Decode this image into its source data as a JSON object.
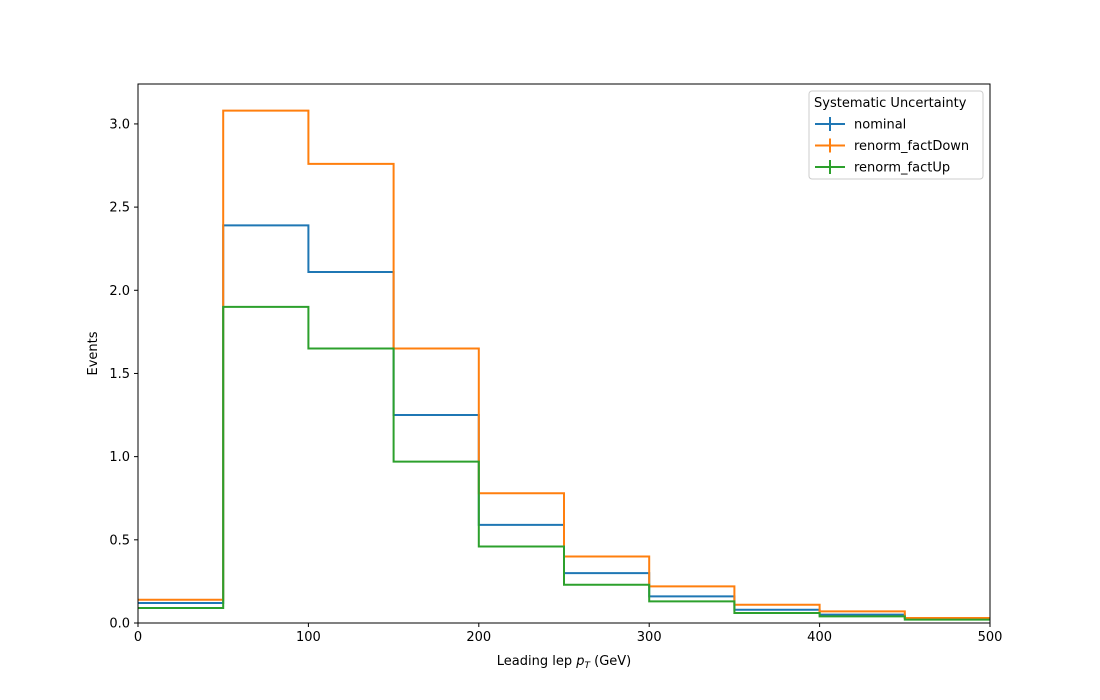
{
  "chart_data": {
    "type": "line",
    "drawstyle": "steps-post",
    "bin_edges": [
      0,
      50,
      100,
      150,
      200,
      250,
      300,
      350,
      400,
      450,
      500
    ],
    "xlabel_main": "Leading lep ",
    "xlabel_math_base": "p",
    "xlabel_math_sub": "T",
    "xlabel_unit": " (GeV)",
    "ylabel": "Events",
    "xlim": [
      0,
      500
    ],
    "ylim": [
      0,
      3.24
    ],
    "xticks": [
      0,
      100,
      200,
      300,
      400,
      500
    ],
    "yticks": [
      0.0,
      0.5,
      1.0,
      1.5,
      2.0,
      2.5,
      3.0
    ],
    "xtick_labels": [
      "0",
      "100",
      "200",
      "300",
      "400",
      "500"
    ],
    "ytick_labels": [
      "0.0",
      "0.5",
      "1.0",
      "1.5",
      "2.0",
      "2.5",
      "3.0"
    ],
    "grid": false,
    "legend_title": "Systematic Uncertainty",
    "legend_position": "top-right",
    "series": [
      {
        "name": "nominal",
        "color": "#1f77b4",
        "values": [
          0.12,
          2.39,
          2.11,
          1.25,
          0.59,
          0.3,
          0.16,
          0.08,
          0.05,
          0.03
        ]
      },
      {
        "name": "renorm_factDown",
        "color": "#ff7f0e",
        "values": [
          0.14,
          3.08,
          2.76,
          1.65,
          0.78,
          0.4,
          0.22,
          0.11,
          0.07,
          0.03
        ]
      },
      {
        "name": "renorm_factUp",
        "color": "#2ca02c",
        "values": [
          0.09,
          1.9,
          1.65,
          0.97,
          0.46,
          0.23,
          0.13,
          0.06,
          0.04,
          0.02
        ]
      }
    ]
  }
}
